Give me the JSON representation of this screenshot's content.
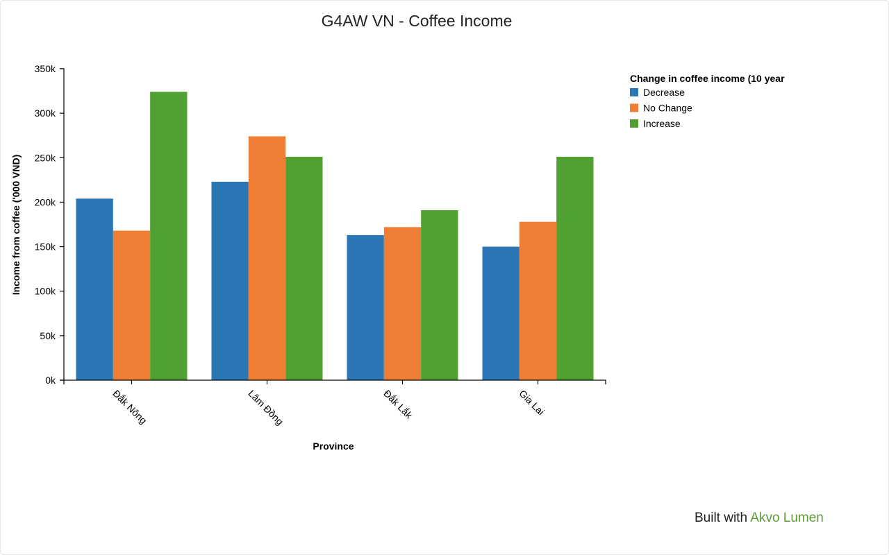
{
  "page": {
    "title": "G4AW VN - Coffee Income",
    "footer_prefix": "Built with",
    "footer_link": "Akvo Lumen"
  },
  "chart_data": {
    "type": "bar",
    "title": "G4AW VN - Coffee Income",
    "xlabel": "Province",
    "ylabel": "Income from coffee ('000 VND)",
    "categories": [
      "Đắk Nông",
      "Lâm Đồng",
      "Đắk Lắk",
      "Gia Lai"
    ],
    "ylim": [
      0,
      350000
    ],
    "yticks": [
      0,
      50000,
      100000,
      150000,
      200000,
      250000,
      300000,
      350000
    ],
    "ytick_labels": [
      "0k",
      "50k",
      "100k",
      "150k",
      "200k",
      "250k",
      "300k",
      "350k"
    ],
    "grid": false,
    "legend": {
      "title": "Change in coffee income (10 year",
      "position": "top-right"
    },
    "series": [
      {
        "name": "Decrease",
        "color": "#2b77b6",
        "values": [
          204000,
          223000,
          163000,
          150000
        ]
      },
      {
        "name": "No Change",
        "color": "#ee7e33",
        "values": [
          168000,
          274000,
          172000,
          178000
        ]
      },
      {
        "name": "Increase",
        "color": "#51a132",
        "values": [
          324000,
          251000,
          191000,
          251000
        ]
      }
    ]
  }
}
